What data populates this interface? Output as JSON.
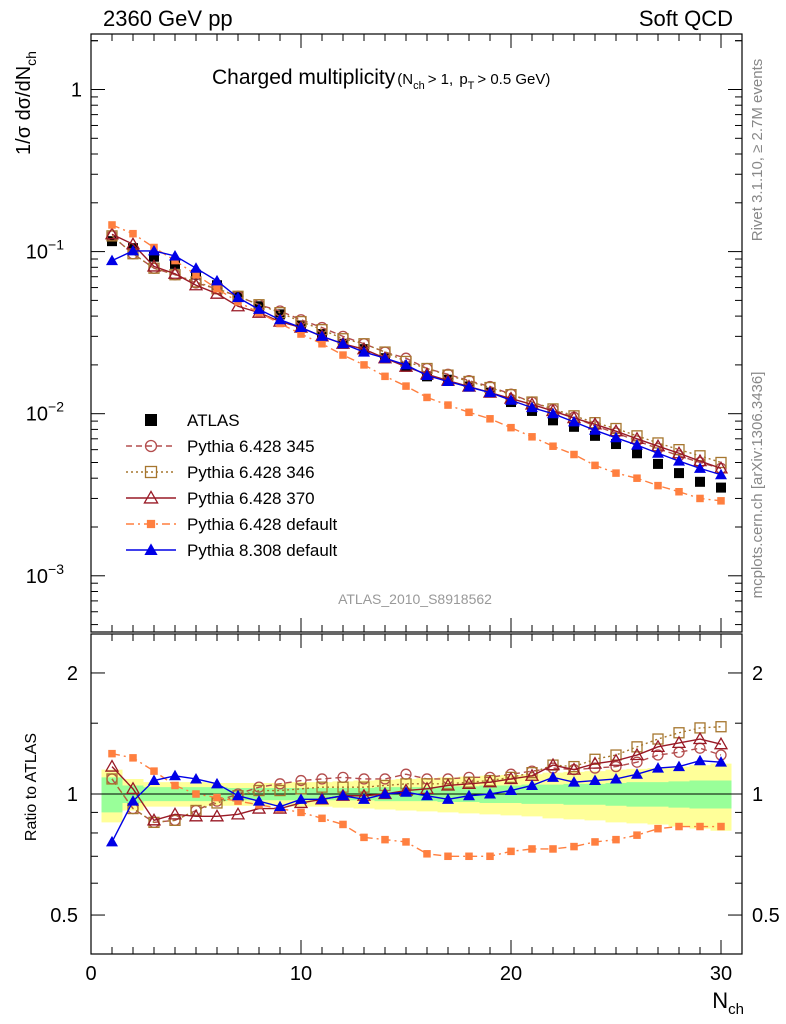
{
  "header": {
    "left": "2360 GeV pp",
    "right": "Soft QCD"
  },
  "side_text": {
    "rivet": "Rivet 3.1.10, ≥ 2.7M events",
    "mcplots": "mcplots.cern.ch [arXiv:1306.3436]"
  },
  "analysis_id": "ATLAS_2010_S8918562",
  "chart_data": [
    {
      "type": "scatter",
      "panel": "main",
      "title": "Charged multiplicity",
      "title_cuts": {
        "nch_label": "N",
        "nch_sub": "ch",
        "nch_cut": "> 1, ",
        "pt_label": "p",
        "pt_sub": "T",
        "pt_cut": "> 0.5 GeV)"
      },
      "ylabel": "1/σ dσ/dN",
      "ylabel_sub": "ch",
      "yscale": "log",
      "ylim": [
        0.00045,
        2.2
      ],
      "xlim": [
        0,
        31
      ],
      "yticks": [
        {
          "v": 1,
          "base": "1",
          "exp": ""
        },
        {
          "v": 0.1,
          "base": "10",
          "exp": "−1"
        },
        {
          "v": 0.01,
          "base": "10",
          "exp": "−2"
        },
        {
          "v": 0.001,
          "base": "10",
          "exp": "−3"
        }
      ],
      "x": [
        1,
        2,
        3,
        4,
        5,
        6,
        7,
        8,
        9,
        10,
        11,
        12,
        13,
        14,
        15,
        16,
        17,
        18,
        19,
        20,
        21,
        22,
        23,
        24,
        25,
        26,
        27,
        28,
        29,
        30
      ],
      "series": [
        {
          "name": "ATLAS",
          "color": "#000000",
          "marker": "square",
          "line": "none",
          "values": [
            0.116,
            0.105,
            0.093,
            0.084,
            0.072,
            0.062,
            0.053,
            0.046,
            0.041,
            0.035,
            0.031,
            0.027,
            0.025,
            0.022,
            0.0195,
            0.017,
            0.0162,
            0.0147,
            0.0135,
            0.0118,
            0.0104,
            0.0091,
            0.0083,
            0.0073,
            0.0065,
            0.0057,
            0.0049,
            0.0043,
            0.0038,
            0.0035
          ]
        },
        {
          "name": "Pythia 6.428 345",
          "color": "#b34d4d",
          "marker": "circle-open",
          "line": "dashed",
          "values": [
            0.125,
            0.097,
            0.079,
            0.072,
            0.064,
            0.059,
            0.053,
            0.047,
            0.043,
            0.038,
            0.034,
            0.03,
            0.027,
            0.024,
            0.022,
            0.019,
            0.0175,
            0.016,
            0.0147,
            0.0132,
            0.0118,
            0.0106,
            0.0095,
            0.0084,
            0.0076,
            0.0068,
            0.0061,
            0.0055,
            0.005,
            0.0046
          ]
        },
        {
          "name": "Pythia 6.428 346",
          "color": "#a6762e",
          "marker": "square-open",
          "line": "dotted",
          "values": [
            0.125,
            0.097,
            0.079,
            0.072,
            0.065,
            0.059,
            0.053,
            0.047,
            0.042,
            0.037,
            0.033,
            0.029,
            0.027,
            0.024,
            0.021,
            0.019,
            0.0173,
            0.0158,
            0.0145,
            0.0131,
            0.0118,
            0.0107,
            0.0097,
            0.0088,
            0.0081,
            0.0073,
            0.0066,
            0.006,
            0.0055,
            0.005
          ]
        },
        {
          "name": "Pythia 6.428 370",
          "color": "#991a26",
          "marker": "triangle-open",
          "line": "solid",
          "values": [
            0.128,
            0.111,
            0.081,
            0.073,
            0.062,
            0.055,
            0.046,
            0.042,
            0.037,
            0.034,
            0.03,
            0.027,
            0.025,
            0.022,
            0.0195,
            0.0175,
            0.016,
            0.0147,
            0.0135,
            0.0124,
            0.0114,
            0.0104,
            0.0094,
            0.0086,
            0.0078,
            0.007,
            0.0063,
            0.0057,
            0.0051,
            0.0046
          ]
        },
        {
          "name": "Pythia 6.428 default",
          "color": "#ff7f3f",
          "marker": "square-small",
          "line": "dashdot",
          "values": [
            0.146,
            0.129,
            0.106,
            0.088,
            0.072,
            0.059,
            0.049,
            0.042,
            0.036,
            0.031,
            0.027,
            0.023,
            0.02,
            0.017,
            0.0148,
            0.0126,
            0.0113,
            0.0102,
            0.0093,
            0.0082,
            0.0072,
            0.0063,
            0.0056,
            0.0048,
            0.0043,
            0.004,
            0.0036,
            0.0033,
            0.003,
            0.0029
          ]
        },
        {
          "name": "Pythia 8.308 default",
          "color": "#0000e6",
          "marker": "triangle",
          "line": "solid",
          "values": [
            0.088,
            0.101,
            0.101,
            0.094,
            0.079,
            0.066,
            0.052,
            0.044,
            0.038,
            0.034,
            0.03,
            0.027,
            0.024,
            0.022,
            0.02,
            0.0172,
            0.0158,
            0.0146,
            0.0135,
            0.0121,
            0.0109,
            0.01,
            0.0089,
            0.0079,
            0.0071,
            0.0064,
            0.0057,
            0.0051,
            0.0046,
            0.0042
          ]
        }
      ],
      "legend_position": "middle-left"
    },
    {
      "type": "scatter",
      "panel": "ratio",
      "ylabel": "Ratio to ATLAS",
      "xlabel": "N",
      "xlabel_sub": "ch",
      "yscale": "log",
      "ylim": [
        0.4,
        2.5
      ],
      "xlim": [
        0,
        31
      ],
      "yticks": [
        {
          "v": 2,
          "label": "2"
        },
        {
          "v": 1,
          "label": "1"
        },
        {
          "v": 0.5,
          "label": "0.5"
        }
      ],
      "xticks": [
        0,
        10,
        20,
        30
      ],
      "x": [
        1,
        2,
        3,
        4,
        5,
        6,
        7,
        8,
        9,
        10,
        11,
        12,
        13,
        14,
        15,
        16,
        17,
        18,
        19,
        20,
        21,
        22,
        23,
        24,
        25,
        26,
        27,
        28,
        29,
        30
      ],
      "bands": {
        "stat_syst_inner_color": "#99ff99",
        "stat_syst_outer_color": "#ffff99",
        "inner_halfwidth": [
          0.1,
          0.05,
          0.04,
          0.04,
          0.04,
          0.04,
          0.035,
          0.035,
          0.035,
          0.035,
          0.035,
          0.035,
          0.035,
          0.04,
          0.04,
          0.04,
          0.045,
          0.045,
          0.05,
          0.05,
          0.055,
          0.055,
          0.06,
          0.06,
          0.065,
          0.07,
          0.07,
          0.075,
          0.08,
          0.08
        ],
        "outer_halfwidth": [
          0.15,
          0.09,
          0.07,
          0.07,
          0.07,
          0.065,
          0.065,
          0.065,
          0.065,
          0.07,
          0.07,
          0.075,
          0.08,
          0.085,
          0.09,
          0.095,
          0.1,
          0.105,
          0.11,
          0.115,
          0.12,
          0.13,
          0.135,
          0.14,
          0.15,
          0.155,
          0.16,
          0.17,
          0.18,
          0.19
        ]
      },
      "series": [
        {
          "name": "Pythia 6.428 345",
          "color": "#b34d4d",
          "marker": "circle-open",
          "line": "dashed",
          "values": [
            1.09,
            0.92,
            0.85,
            0.86,
            0.91,
            0.96,
            1.0,
            1.04,
            1.06,
            1.08,
            1.09,
            1.1,
            1.09,
            1.09,
            1.12,
            1.09,
            1.09,
            1.1,
            1.1,
            1.12,
            1.14,
            1.16,
            1.15,
            1.16,
            1.17,
            1.2,
            1.25,
            1.27,
            1.3,
            1.25
          ]
        },
        {
          "name": "Pythia 6.428 346",
          "color": "#a6762e",
          "marker": "square-open",
          "line": "dotted",
          "values": [
            1.09,
            0.92,
            0.85,
            0.86,
            0.91,
            0.95,
            0.99,
            1.02,
            1.02,
            1.03,
            1.04,
            1.04,
            1.04,
            1.05,
            1.06,
            1.06,
            1.06,
            1.07,
            1.08,
            1.1,
            1.13,
            1.18,
            1.17,
            1.22,
            1.25,
            1.31,
            1.37,
            1.42,
            1.46,
            1.47
          ]
        },
        {
          "name": "Pythia 6.428 370",
          "color": "#991a26",
          "marker": "triangle-open",
          "line": "solid",
          "values": [
            1.17,
            1.03,
            0.86,
            0.89,
            0.88,
            0.88,
            0.89,
            0.92,
            0.92,
            0.95,
            0.97,
            0.99,
            0.99,
            1.0,
            1.02,
            1.03,
            1.05,
            1.06,
            1.07,
            1.09,
            1.11,
            1.18,
            1.15,
            1.19,
            1.21,
            1.25,
            1.31,
            1.34,
            1.37,
            1.33
          ]
        },
        {
          "name": "Pythia 6.428 default",
          "color": "#ff7f3f",
          "marker": "square-small",
          "line": "dashdot",
          "values": [
            1.26,
            1.23,
            1.14,
            1.05,
            1.0,
            0.98,
            0.96,
            0.94,
            0.92,
            0.9,
            0.87,
            0.84,
            0.78,
            0.77,
            0.76,
            0.71,
            0.7,
            0.7,
            0.7,
            0.72,
            0.73,
            0.73,
            0.74,
            0.76,
            0.77,
            0.79,
            0.82,
            0.83,
            0.83,
            0.83
          ]
        },
        {
          "name": "Pythia 8.308 default",
          "color": "#0000e6",
          "marker": "triangle",
          "line": "solid",
          "values": [
            0.76,
            0.96,
            1.08,
            1.11,
            1.09,
            1.06,
            0.99,
            0.96,
            0.93,
            0.97,
            0.97,
            0.99,
            0.97,
            1.0,
            1.01,
            0.99,
            0.97,
            0.99,
            1.0,
            1.02,
            1.05,
            1.1,
            1.07,
            1.08,
            1.09,
            1.12,
            1.16,
            1.17,
            1.21,
            1.2
          ]
        }
      ]
    }
  ]
}
